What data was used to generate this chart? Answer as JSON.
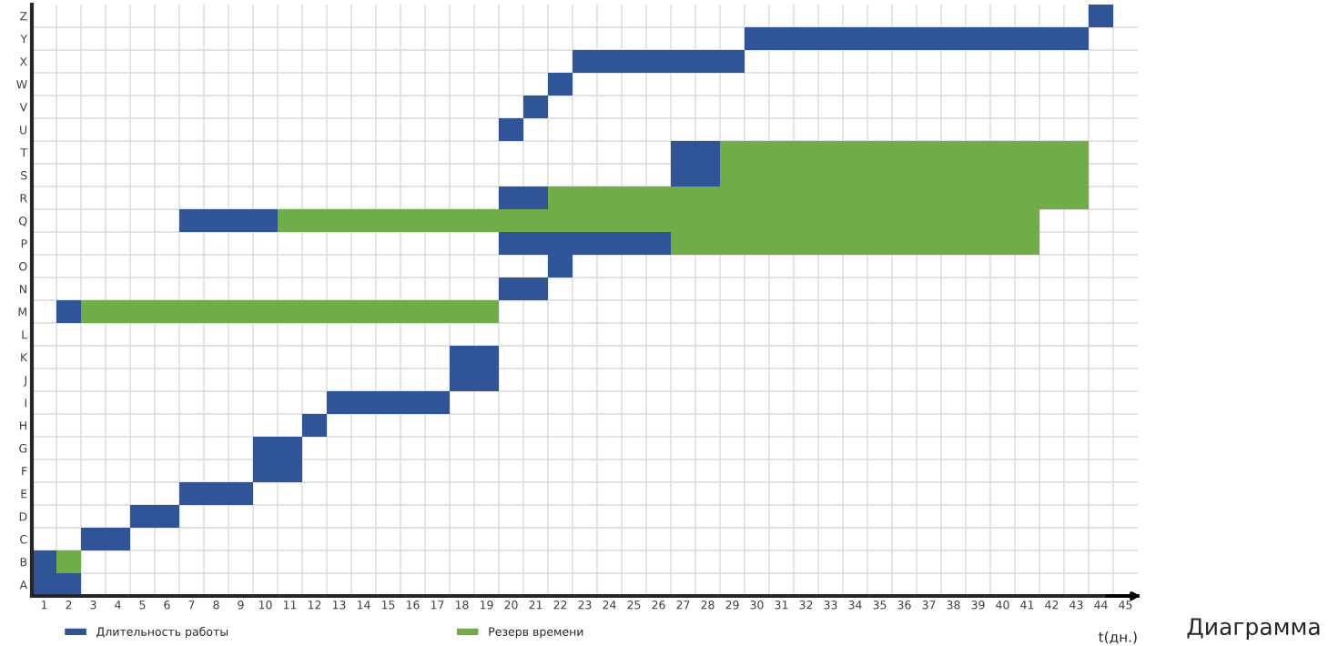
{
  "chart_data": {
    "type": "bar",
    "orientation": "horizontal",
    "xlabel": "t(дн.)",
    "categories": [
      "Z",
      "Y",
      "X",
      "W",
      "V",
      "U",
      "T",
      "S",
      "R",
      "Q",
      "P",
      "O",
      "N",
      "M",
      "L",
      "K",
      "J",
      "I",
      "H",
      "G",
      "F",
      "E",
      "D",
      "C",
      "B",
      "A"
    ],
    "series": [
      {
        "name": "Длительность работы",
        "color": "#2f5597",
        "values": [
          1,
          14,
          7,
          1,
          1,
          1,
          2,
          2,
          2,
          4,
          7,
          1,
          2,
          1,
          null,
          2,
          2,
          5,
          1,
          2,
          2,
          3,
          2,
          2,
          1,
          2
        ],
        "base": [
          43.5,
          29.5,
          22.5,
          21.5,
          20.5,
          19.5,
          26.5,
          26.5,
          19.5,
          6.5,
          19.5,
          21.5,
          19.5,
          1.5,
          null,
          17.5,
          17.5,
          12.5,
          11.5,
          9.5,
          9.5,
          6.5,
          4.5,
          2.5,
          0.5,
          0.5
        ]
      },
      {
        "name": "Резерв времени",
        "color": "#70ad47",
        "values": [
          null,
          null,
          null,
          null,
          null,
          null,
          15,
          15,
          22,
          31,
          15,
          null,
          null,
          17,
          null,
          null,
          null,
          null,
          null,
          null,
          null,
          null,
          null,
          null,
          1,
          null
        ],
        "base": [
          null,
          null,
          null,
          null,
          null,
          null,
          28.5,
          28.5,
          21.5,
          10.5,
          26.5,
          null,
          null,
          2.5,
          null,
          null,
          null,
          null,
          null,
          null,
          null,
          null,
          null,
          null,
          1.5,
          null
        ]
      }
    ],
    "xlim": [
      0.5,
      45.5
    ],
    "xticks": [
      1,
      2,
      3,
      4,
      5,
      6,
      7,
      8,
      9,
      10,
      11,
      12,
      13,
      14,
      15,
      16,
      17,
      18,
      19,
      20,
      21,
      22,
      23,
      24,
      25,
      26,
      27,
      28,
      29,
      30,
      31,
      32,
      33,
      34,
      35,
      36,
      37,
      38,
      39,
      40,
      41,
      42,
      43,
      44,
      45
    ],
    "grid": true,
    "legend": "bottom",
    "annotations": [
      "Диаграмма"
    ]
  }
}
